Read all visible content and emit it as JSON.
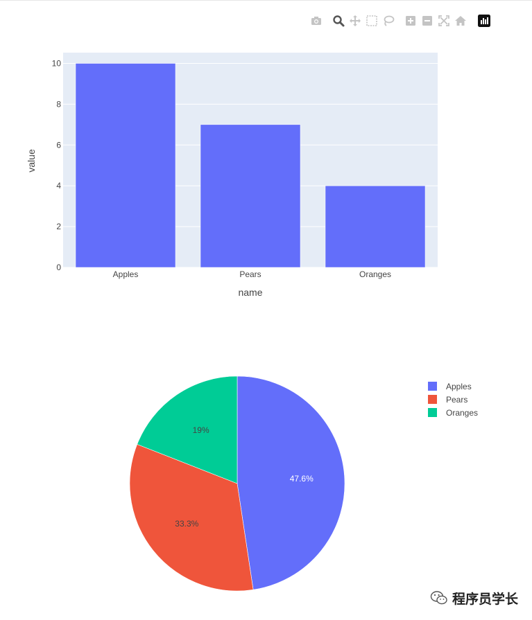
{
  "modebar": {
    "icons": [
      "camera-icon",
      "zoom-icon",
      "pan-icon",
      "box-select-icon",
      "lasso-select-icon",
      "zoom-in-icon",
      "zoom-out-icon",
      "autoscale-icon",
      "reset-axes-icon",
      "plotly-logo-icon"
    ]
  },
  "colors": {
    "plot_bg": "#e5ecf6",
    "grid": "#ffffff",
    "apples": "#636efa",
    "pears": "#ef553b",
    "oranges": "#00cc96",
    "text": "#444444"
  },
  "chart_data": [
    {
      "type": "bar",
      "categories": [
        "Apples",
        "Pears",
        "Oranges"
      ],
      "values": [
        10,
        7,
        4
      ],
      "xlabel": "name",
      "ylabel": "value",
      "ylim": [
        0,
        10.526
      ],
      "yticks": [
        "0",
        "2",
        "4",
        "6",
        "8",
        "10"
      ],
      "grid": true,
      "color": "#636efa"
    },
    {
      "type": "pie",
      "labels": [
        "Apples",
        "Pears",
        "Oranges"
      ],
      "values": [
        10,
        7,
        4
      ],
      "percent_labels": [
        "47.6%",
        "33.3%",
        "19%"
      ],
      "colors": [
        "#636efa",
        "#ef553b",
        "#00cc96"
      ],
      "legend": "top-right"
    }
  ],
  "watermark": {
    "text": "程序员学长"
  }
}
